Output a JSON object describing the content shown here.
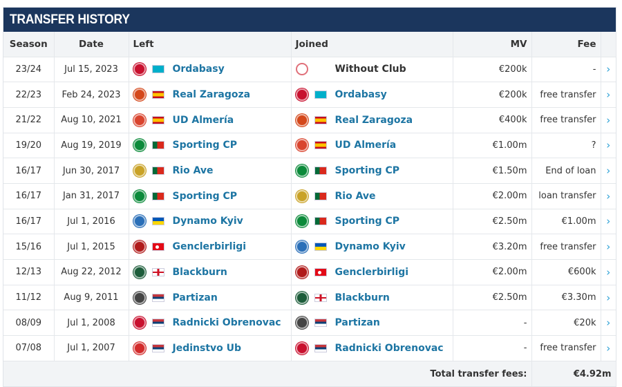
{
  "title": "TRANSFER HISTORY",
  "columns": {
    "season": "Season",
    "date": "Date",
    "left": "Left",
    "joined": "Joined",
    "mv": "MV",
    "fee": "Fee"
  },
  "rows": [
    {
      "season": "23/24",
      "date": "Jul 15, 2023",
      "left": "Ordabasy",
      "left_flag": "kz",
      "left_crest": "#c8102e",
      "joined": "Without Club",
      "joined_flag": "none",
      "joined_crest": "#ffffff",
      "mv": "€200k",
      "fee": "-"
    },
    {
      "season": "22/23",
      "date": "Feb 24, 2023",
      "left": "Real Zaragoza",
      "left_flag": "es",
      "left_crest": "#d4481b",
      "joined": "Ordabasy",
      "joined_flag": "kz",
      "joined_crest": "#c8102e",
      "mv": "€200k",
      "fee": "free transfer"
    },
    {
      "season": "21/22",
      "date": "Aug 10, 2021",
      "left": "UD Almería",
      "left_flag": "es",
      "left_crest": "#d9442e",
      "joined": "Real Zaragoza",
      "joined_flag": "es",
      "joined_crest": "#d4481b",
      "mv": "€400k",
      "fee": "free transfer"
    },
    {
      "season": "19/20",
      "date": "Aug 19, 2019",
      "left": "Sporting CP",
      "left_flag": "pt",
      "left_crest": "#0b8a3a",
      "joined": "UD Almería",
      "joined_flag": "es",
      "joined_crest": "#d9442e",
      "mv": "€1.00m",
      "fee": "?"
    },
    {
      "season": "16/17",
      "date": "Jun 30, 2017",
      "left": "Rio Ave",
      "left_flag": "pt",
      "left_crest": "#c9a227",
      "joined": "Sporting CP",
      "joined_flag": "pt",
      "joined_crest": "#0b8a3a",
      "mv": "€1.50m",
      "fee": "End of loan"
    },
    {
      "season": "16/17",
      "date": "Jan 31, 2017",
      "left": "Sporting CP",
      "left_flag": "pt",
      "left_crest": "#0b8a3a",
      "joined": "Rio Ave",
      "joined_flag": "pt",
      "joined_crest": "#c9a227",
      "mv": "€2.00m",
      "fee": "loan transfer"
    },
    {
      "season": "16/17",
      "date": "Jul 1, 2016",
      "left": "Dynamo Kyiv",
      "left_flag": "ua",
      "left_crest": "#2a6fb8",
      "joined": "Sporting CP",
      "joined_flag": "pt",
      "joined_crest": "#0b8a3a",
      "mv": "€2.50m",
      "fee": "€1.00m"
    },
    {
      "season": "15/16",
      "date": "Jul 1, 2015",
      "left": "Genclerbirligi",
      "left_flag": "tr",
      "left_crest": "#b01b1b",
      "joined": "Dynamo Kyiv",
      "joined_flag": "ua",
      "joined_crest": "#2a6fb8",
      "mv": "€3.20m",
      "fee": "free transfer"
    },
    {
      "season": "12/13",
      "date": "Aug 22, 2012",
      "left": "Blackburn",
      "left_flag": "en",
      "left_crest": "#1c5c3a",
      "joined": "Genclerbirligi",
      "joined_flag": "tr",
      "joined_crest": "#b01b1b",
      "mv": "€2.00m",
      "fee": "€600k"
    },
    {
      "season": "11/12",
      "date": "Aug 9, 2011",
      "left": "Partizan",
      "left_flag": "rs",
      "left_crest": "#444444",
      "joined": "Blackburn",
      "joined_flag": "en",
      "joined_crest": "#1c5c3a",
      "mv": "€2.50m",
      "fee": "€3.30m"
    },
    {
      "season": "08/09",
      "date": "Jul 1, 2008",
      "left": "Radnicki Obrenovac",
      "left_flag": "rs",
      "left_crest": "#c8102e",
      "joined": "Partizan",
      "joined_flag": "rs",
      "joined_crest": "#444444",
      "mv": "-",
      "fee": "€20k"
    },
    {
      "season": "07/08",
      "date": "Jul 1, 2007",
      "left": "Jedinstvo Ub",
      "left_flag": "rs",
      "left_crest": "#d22b2b",
      "joined": "Radnicki Obrenovac",
      "joined_flag": "rs",
      "joined_crest": "#c8102e",
      "mv": "-",
      "fee": "free transfer"
    }
  ],
  "footer": {
    "total_label": "Total transfer fees:",
    "total_value": "€4.92m"
  },
  "row_arrow": "›"
}
